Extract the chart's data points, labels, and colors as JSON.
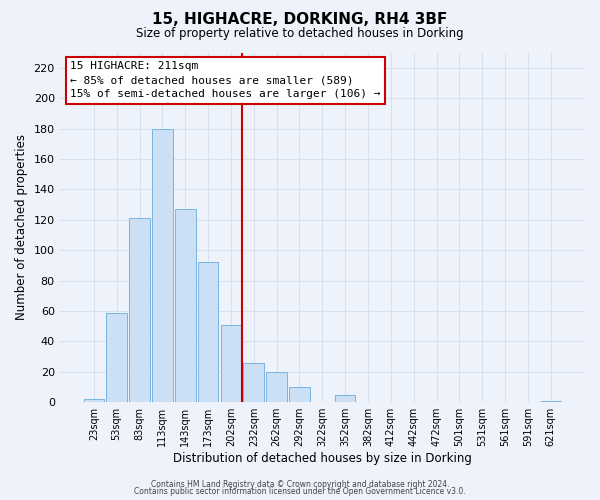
{
  "title": "15, HIGHACRE, DORKING, RH4 3BF",
  "subtitle": "Size of property relative to detached houses in Dorking",
  "xlabel": "Distribution of detached houses by size in Dorking",
  "ylabel": "Number of detached properties",
  "bar_color": "#cce0f5",
  "bar_edge_color": "#7ab4e0",
  "categories": [
    "23sqm",
    "53sqm",
    "83sqm",
    "113sqm",
    "143sqm",
    "173sqm",
    "202sqm",
    "232sqm",
    "262sqm",
    "292sqm",
    "322sqm",
    "352sqm",
    "382sqm",
    "412sqm",
    "442sqm",
    "472sqm",
    "501sqm",
    "531sqm",
    "561sqm",
    "591sqm",
    "621sqm"
  ],
  "values": [
    2,
    59,
    121,
    180,
    127,
    92,
    51,
    26,
    20,
    10,
    0,
    5,
    0,
    0,
    0,
    0,
    0,
    0,
    0,
    0,
    1
  ],
  "ylim": [
    0,
    230
  ],
  "yticks": [
    0,
    20,
    40,
    60,
    80,
    100,
    120,
    140,
    160,
    180,
    200,
    220
  ],
  "vline_x": 6.5,
  "vline_color": "#cc0000",
  "annotation_title": "15 HIGHACRE: 211sqm",
  "annotation_line1": "← 85% of detached houses are smaller (589)",
  "annotation_line2": "15% of semi-detached houses are larger (106) →",
  "annotation_box_color": "#ffffff",
  "annotation_box_edge_color": "#cc0000",
  "footer_line1": "Contains HM Land Registry data © Crown copyright and database right 2024.",
  "footer_line2": "Contains public sector information licensed under the Open Government Licence v3.0.",
  "background_color": "#eef2fb",
  "grid_color": "#d8e0ef"
}
